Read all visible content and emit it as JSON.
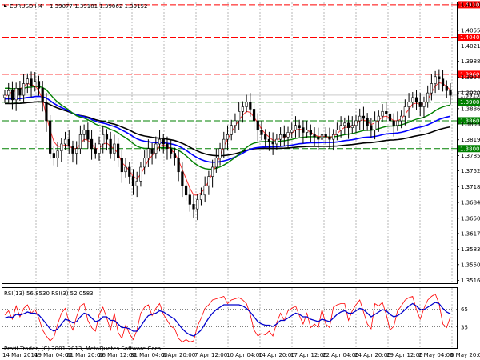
{
  "header": {
    "symbol_label": "EURUSD,H4",
    "ohlc": "1.39077 1.39181 1.39062 1.39152"
  },
  "rsi_header": "RSI(13) 56.8530 RSI(3) 52.0583",
  "copyright": "Profit-Trader, (C) 2001-2013, MetaQuotes Software Corp.",
  "colors": {
    "background": "#ffffff",
    "candles": "#000000",
    "ma_fast": "#ff3333",
    "ma_mid": "#008000",
    "ma_blue": "#0000ff",
    "ma_slow": "#000000",
    "resistance_lines": "#ff0000",
    "support_lines": "#008000",
    "rsi_fast": "#ff0000",
    "rsi_slow": "#0000cc",
    "price_tag": "#ffffff"
  },
  "chart_data": {
    "type": "candlestick",
    "instrument": "EURUSD",
    "timeframe": "H4",
    "ylim": [
      1.351,
      1.4115
    ],
    "price_ticks": [
      "1.41100",
      "1.40550",
      "1.40210",
      "1.39880",
      "1.39540",
      "1.39200",
      "1.38860",
      "1.38530",
      "1.38190",
      "1.37850",
      "1.37520",
      "1.37180",
      "1.36840",
      "1.36500",
      "1.36170",
      "1.35830",
      "1.35500",
      "1.35160"
    ],
    "time_labels": [
      "14 Mar 2014",
      "19 Mar 04:00",
      "21 Mar 20:00",
      "26 Mar 12:00",
      "31 Mar 04:00",
      "2 Apr 20:00",
      "7 Apr 12:00",
      "10 Apr 04:00",
      "14 Apr 20:00",
      "17 Apr 12:00",
      "22 Apr 04:00",
      "24 Apr 20:00",
      "29 Apr 12:00",
      "2 May 04:00",
      "6 May 20:00"
    ],
    "horizontal_lines": [
      {
        "label": "1.41100",
        "price": 1.411,
        "style": "resistance"
      },
      {
        "label": "1.40400",
        "price": 1.404,
        "style": "resistance"
      },
      {
        "label": "1.39600",
        "price": 1.396,
        "style": "resistance"
      },
      {
        "label": "1.39000",
        "price": 1.39,
        "style": "support"
      },
      {
        "label": "1.38600",
        "price": 1.386,
        "style": "support"
      },
      {
        "label": "1.38000",
        "price": 1.38,
        "style": "support"
      }
    ],
    "current_price": "1.39152",
    "close_series": [
      1.3915,
      1.3925,
      1.3905,
      1.393,
      1.3915,
      1.394,
      1.395,
      1.3935,
      1.3945,
      1.393,
      1.39,
      1.386,
      1.379,
      1.378,
      1.3795,
      1.381,
      1.382,
      1.3805,
      1.379,
      1.38,
      1.383,
      1.384,
      1.382,
      1.38,
      1.379,
      1.381,
      1.383,
      1.382,
      1.379,
      1.381,
      1.378,
      1.375,
      1.376,
      1.374,
      1.372,
      1.373,
      1.376,
      1.378,
      1.38,
      1.379,
      1.381,
      1.382,
      1.381,
      1.38,
      1.379,
      1.378,
      1.375,
      1.372,
      1.37,
      1.368,
      1.367,
      1.369,
      1.37,
      1.372,
      1.374,
      1.376,
      1.378,
      1.38,
      1.382,
      1.383,
      1.385,
      1.386,
      1.388,
      1.389,
      1.39,
      1.3885,
      1.386,
      1.384,
      1.383,
      1.382,
      1.3815,
      1.381,
      1.382,
      1.383,
      1.3825,
      1.3835,
      1.384,
      1.385,
      1.3845,
      1.3835,
      1.384,
      1.383,
      1.3825,
      1.382,
      1.383,
      1.3825,
      1.382,
      1.383,
      1.384,
      1.385,
      1.3855,
      1.3845,
      1.385,
      1.386,
      1.387,
      1.3865,
      1.385,
      1.384,
      1.386,
      1.387,
      1.388,
      1.3875,
      1.386,
      1.385,
      1.386,
      1.387,
      1.389,
      1.39,
      1.391,
      1.39,
      1.389,
      1.39,
      1.392,
      1.394,
      1.3955,
      1.395,
      1.3935,
      1.3925,
      1.3915
    ],
    "ma_fast_series": [
      1.391,
      1.3918,
      1.3922,
      1.3925,
      1.3928,
      1.3935,
      1.394,
      1.3938,
      1.3935,
      1.3925,
      1.3905,
      1.387,
      1.384,
      1.3815,
      1.3805,
      1.3805,
      1.3808,
      1.3806,
      1.38,
      1.38,
      1.381,
      1.382,
      1.3818,
      1.381,
      1.38,
      1.38,
      1.381,
      1.3812,
      1.3805,
      1.38,
      1.379,
      1.377,
      1.3762,
      1.3752,
      1.374,
      1.3735,
      1.3745,
      1.376,
      1.3775,
      1.3785,
      1.3795,
      1.3805,
      1.3808,
      1.3805,
      1.3798,
      1.379,
      1.3775,
      1.3755,
      1.3735,
      1.3715,
      1.37,
      1.37,
      1.3705,
      1.3715,
      1.373,
      1.3748,
      1.3765,
      1.3785,
      1.3805,
      1.382,
      1.3835,
      1.3848,
      1.3862,
      1.3872,
      1.388,
      1.3878,
      1.3868,
      1.3855,
      1.3842,
      1.3832,
      1.3825,
      1.3818,
      1.3818,
      1.3822,
      1.3824,
      1.3828,
      1.3833,
      1.384,
      1.3842,
      1.384,
      1.384,
      1.3835,
      1.383,
      1.3826,
      1.3827,
      1.3826,
      1.3824,
      1.3827,
      1.3832,
      1.384,
      1.3846,
      1.3846,
      1.3848,
      1.3853,
      1.386,
      1.3862,
      1.3858,
      1.3852,
      1.3855,
      1.3861,
      1.3868,
      1.387,
      1.3866,
      1.386,
      1.386,
      1.3864,
      1.3874,
      1.3885,
      1.3896,
      1.3898,
      1.3895,
      1.3897,
      1.3906,
      1.392,
      1.3935,
      1.3942,
      1.394,
      1.3934,
      1.3926
    ]
  },
  "rsi": {
    "levels": [
      "65",
      "35"
    ],
    "level_values": [
      65,
      35
    ],
    "ylim": [
      0,
      100
    ],
    "fast_series": [
      55,
      62,
      48,
      70,
      52,
      66,
      72,
      58,
      64,
      50,
      30,
      20,
      12,
      18,
      40,
      58,
      66,
      44,
      30,
      52,
      70,
      74,
      46,
      34,
      28,
      56,
      68,
      50,
      30,
      58,
      26,
      16,
      38,
      24,
      14,
      30,
      58,
      68,
      72,
      54,
      66,
      74,
      56,
      46,
      36,
      32,
      16,
      10,
      14,
      10,
      12,
      36,
      50,
      66,
      72,
      80,
      82,
      84,
      86,
      74,
      80,
      82,
      84,
      80,
      74,
      56,
      30,
      20,
      24,
      22,
      28,
      20,
      42,
      58,
      46,
      62,
      66,
      70,
      54,
      40,
      58,
      34,
      40,
      34,
      64,
      40,
      34,
      68,
      72,
      74,
      74,
      46,
      62,
      72,
      80,
      60,
      40,
      32,
      74,
      70,
      76,
      56,
      30,
      36,
      62,
      70,
      80,
      84,
      86,
      64,
      48,
      66,
      80,
      86,
      90,
      74,
      40,
      34,
      52
    ],
    "slow_series": [
      50,
      52,
      51,
      56,
      55,
      57,
      60,
      58,
      58,
      55,
      48,
      40,
      32,
      28,
      32,
      40,
      48,
      46,
      42,
      44,
      52,
      58,
      56,
      50,
      44,
      46,
      52,
      52,
      46,
      46,
      40,
      34,
      34,
      32,
      28,
      28,
      36,
      46,
      54,
      56,
      58,
      62,
      60,
      56,
      52,
      48,
      40,
      32,
      26,
      22,
      20,
      24,
      30,
      40,
      50,
      58,
      64,
      68,
      72,
      72,
      72,
      72,
      72,
      70,
      66,
      60,
      52,
      44,
      40,
      38,
      38,
      36,
      40,
      46,
      46,
      50,
      54,
      58,
      56,
      52,
      52,
      48,
      46,
      44,
      48,
      46,
      44,
      50,
      56,
      60,
      62,
      58,
      58,
      62,
      66,
      64,
      58,
      52,
      56,
      60,
      64,
      62,
      56,
      52,
      54,
      58,
      64,
      70,
      74,
      70,
      64,
      64,
      68,
      72,
      76,
      74,
      66,
      60,
      57
    ]
  }
}
